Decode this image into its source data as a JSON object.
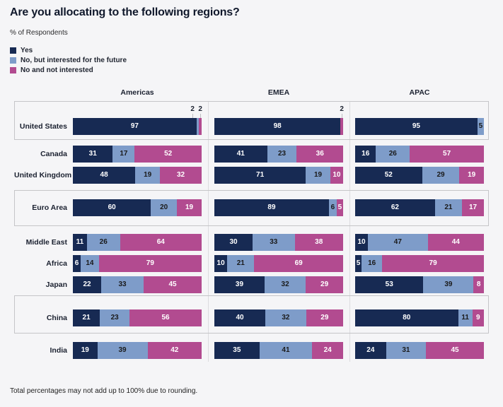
{
  "title": "Are you allocating to the following regions?",
  "subtitle": "% of Respondents",
  "footnote": "Total percentages may not add up to 100% due to rounding.",
  "colors": {
    "yes": "#172A53",
    "future": "#7E9CC9",
    "not_interested": "#B24B90",
    "background": "#F5F5F7",
    "box_border": "#C5C5C8",
    "divider": "#DCDCDF"
  },
  "legend": [
    {
      "key": "yes",
      "label": "Yes"
    },
    {
      "key": "future",
      "label": "No, but interested for the future"
    },
    {
      "key": "not_interested",
      "label": "No and not interested"
    }
  ],
  "chart_data": {
    "type": "bar",
    "variant": "horizontal-stacked-grouped",
    "title": "Are you allocating to the following regions?",
    "ylabel": "% of Respondents",
    "columns": [
      "Americas",
      "EMEA",
      "APAC"
    ],
    "series_labels": [
      "Yes",
      "No, but interested for the future",
      "No and not interested"
    ],
    "sections": [
      {
        "boxed": true,
        "rows": [
          {
            "label": "United States",
            "values": {
              "Americas": [
                97,
                2,
                2
              ],
              "EMEA": [
                98,
                0,
                2
              ],
              "APAC": [
                95,
                5,
                0
              ]
            }
          }
        ]
      },
      {
        "boxed": false,
        "rows": [
          {
            "label": "Canada",
            "values": {
              "Americas": [
                31,
                17,
                52
              ],
              "EMEA": [
                41,
                23,
                36
              ],
              "APAC": [
                16,
                26,
                57
              ]
            }
          },
          {
            "label": "United Kingdom",
            "values": {
              "Americas": [
                48,
                19,
                32
              ],
              "EMEA": [
                71,
                19,
                10
              ],
              "APAC": [
                52,
                29,
                19
              ]
            }
          }
        ]
      },
      {
        "boxed": true,
        "rows": [
          {
            "label": "Euro Area",
            "values": {
              "Americas": [
                60,
                20,
                19
              ],
              "EMEA": [
                89,
                6,
                5
              ],
              "APAC": [
                62,
                21,
                17
              ]
            }
          }
        ]
      },
      {
        "boxed": false,
        "rows": [
          {
            "label": "Middle East",
            "values": {
              "Americas": [
                11,
                26,
                64
              ],
              "EMEA": [
                30,
                33,
                38
              ],
              "APAC": [
                10,
                47,
                44
              ]
            }
          },
          {
            "label": "Africa",
            "values": {
              "Americas": [
                6,
                14,
                79
              ],
              "EMEA": [
                10,
                21,
                69
              ],
              "APAC": [
                5,
                16,
                79
              ]
            }
          },
          {
            "label": "Japan",
            "values": {
              "Americas": [
                22,
                33,
                45
              ],
              "EMEA": [
                39,
                32,
                29
              ],
              "APAC": [
                53,
                39,
                8
              ]
            }
          }
        ]
      },
      {
        "boxed": true,
        "rows": [
          {
            "label": "China",
            "values": {
              "Americas": [
                21,
                23,
                56
              ],
              "EMEA": [
                40,
                32,
                29
              ],
              "APAC": [
                80,
                11,
                9
              ]
            }
          }
        ]
      },
      {
        "boxed": false,
        "rows": [
          {
            "label": "India",
            "values": {
              "Americas": [
                19,
                39,
                42
              ],
              "EMEA": [
                35,
                41,
                24
              ],
              "APAC": [
                24,
                31,
                45
              ]
            }
          }
        ]
      }
    ]
  }
}
